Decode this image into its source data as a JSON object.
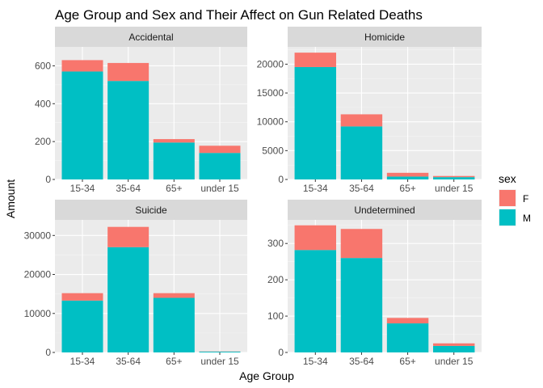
{
  "chart_data": {
    "type": "bar",
    "stacked": true,
    "title": "Age Group and Sex and Their Affect on Gun Related Deaths",
    "xlabel": "Age Group",
    "ylabel": "Amount",
    "categories": [
      "15-34",
      "35-64",
      "65+",
      "under 15"
    ],
    "legend": {
      "title": "sex",
      "position": "right",
      "entries": [
        {
          "label": "F",
          "color": "#F8766D"
        },
        {
          "label": "M",
          "color": "#00BFC4"
        }
      ]
    },
    "grid": true,
    "panels": [
      {
        "name": "Accidental",
        "ylim": [
          0,
          700
        ],
        "yticks": [
          0,
          200,
          400,
          600
        ],
        "series": [
          {
            "name": "M",
            "values": [
              570,
              520,
              195,
              140
            ]
          },
          {
            "name": "F",
            "values": [
              60,
              95,
              18,
              38
            ]
          }
        ]
      },
      {
        "name": "Homicide",
        "ylim": [
          0,
          23000
        ],
        "yticks": [
          0,
          5000,
          10000,
          15000,
          20000
        ],
        "series": [
          {
            "name": "M",
            "values": [
              19500,
              9200,
              500,
              400
            ]
          },
          {
            "name": "F",
            "values": [
              2500,
              2100,
              650,
              200
            ]
          }
        ]
      },
      {
        "name": "Suicide",
        "ylim": [
          0,
          34000
        ],
        "yticks": [
          0,
          10000,
          20000,
          30000
        ],
        "series": [
          {
            "name": "M",
            "values": [
              13300,
              27000,
              14000,
              200
            ]
          },
          {
            "name": "F",
            "values": [
              1900,
              5200,
              1200,
              50
            ]
          }
        ]
      },
      {
        "name": "Undetermined",
        "ylim": [
          0,
          365
        ],
        "yticks": [
          0,
          100,
          200,
          300
        ],
        "series": [
          {
            "name": "M",
            "values": [
              282,
              260,
              80,
              18
            ]
          },
          {
            "name": "F",
            "values": [
              68,
              80,
              15,
              7
            ]
          }
        ]
      }
    ]
  }
}
